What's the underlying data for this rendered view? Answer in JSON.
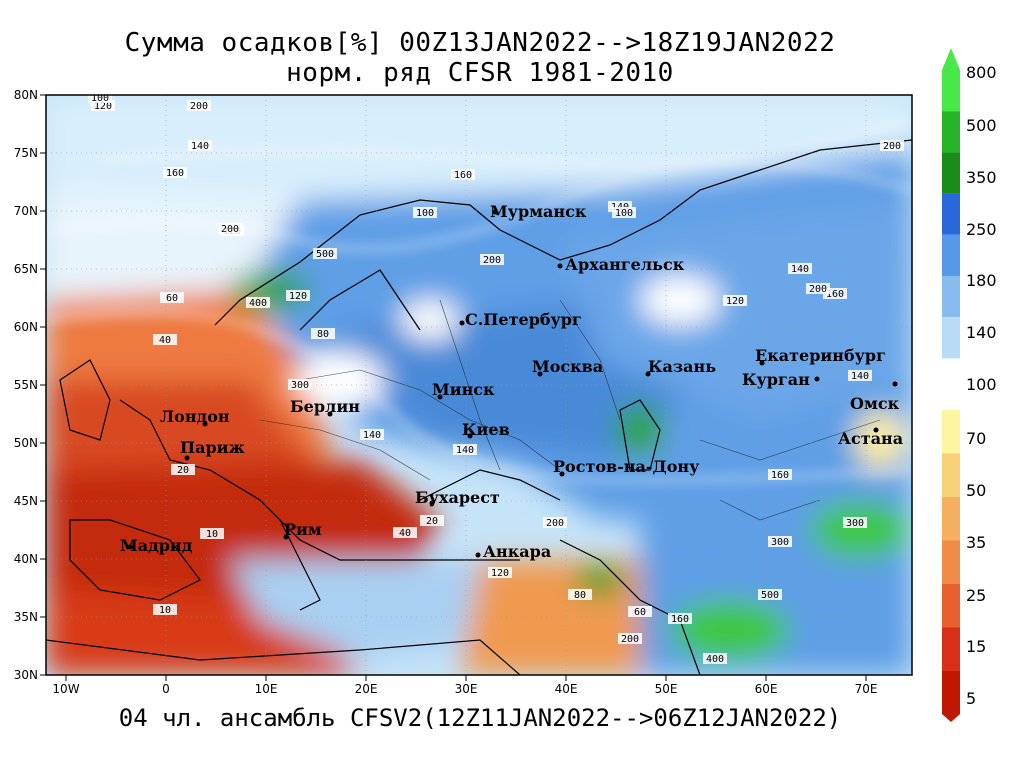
{
  "title_line1": "Сумма осадков[%] 00Z13JAN2022-->18Z19JAN2022",
  "title_line2": "норм. ряд CFSR 1981-2010",
  "footer": "04 чл. ансамбль CFSV2(12Z11JAN2022-->06Z12JAN2022)",
  "axes": {
    "lat_ticks": [
      "80N",
      "75N",
      "70N",
      "65N",
      "60N",
      "55N",
      "50N",
      "45N",
      "40N",
      "35N",
      "30N"
    ],
    "lon_ticks": [
      "10W",
      "0",
      "10E",
      "20E",
      "30E",
      "40E",
      "50E",
      "60E",
      "70E"
    ]
  },
  "colorbar": {
    "labels": [
      "800",
      "500",
      "350",
      "250",
      "180",
      "140",
      "100",
      "70",
      "50",
      "35",
      "25",
      "15",
      "5"
    ],
    "upper_colors": [
      "#48e848",
      "#28b428",
      "#1a8c1a",
      "#2868d8",
      "#5898e8",
      "#88bcf0",
      "#b8dcf8"
    ],
    "lower_colors": [
      "#fff4a0",
      "#f8d078",
      "#f4b060",
      "#f08c48",
      "#e86030",
      "#d83018",
      "#c01800"
    ]
  },
  "cities": [
    {
      "name": "Мурманск"
    },
    {
      "name": "Архангельск"
    },
    {
      "name": "С.Петербург"
    },
    {
      "name": "Москва"
    },
    {
      "name": "Казань"
    },
    {
      "name": "Екатеринбург"
    },
    {
      "name": "Курган"
    },
    {
      "name": "Омск"
    },
    {
      "name": "Астана"
    },
    {
      "name": "Минск"
    },
    {
      "name": "Берлин"
    },
    {
      "name": "Лондон"
    },
    {
      "name": "Париж"
    },
    {
      "name": "Киев"
    },
    {
      "name": "Ростов-на-Дону"
    },
    {
      "name": "Бухарест"
    },
    {
      "name": "Рим"
    },
    {
      "name": "Мадрид"
    },
    {
      "name": "Анкара"
    }
  ],
  "contour_labels": [
    "120",
    "200",
    "100",
    "140",
    "160",
    "120",
    "200",
    "100",
    "140",
    "160",
    "200",
    "300",
    "500",
    "400",
    "120",
    "80",
    "60",
    "40",
    "20",
    "10",
    "100",
    "140",
    "200",
    "160",
    "140",
    "120",
    "200",
    "80",
    "60",
    "40",
    "20",
    "10",
    "300",
    "400",
    "500",
    "160",
    "140",
    "200",
    "300",
    "120",
    "200",
    "160",
    "140"
  ]
}
